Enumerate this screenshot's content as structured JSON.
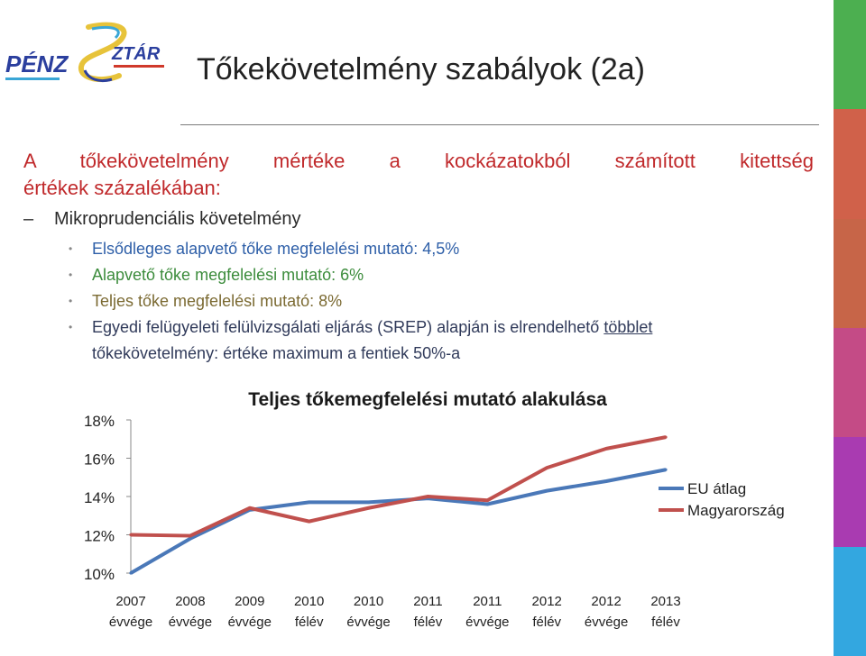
{
  "logo": {
    "text": "PÉNZSZTÁR",
    "colors": [
      "#2b3f9e",
      "#e7c33a",
      "#3aa6d6",
      "#d0392b"
    ]
  },
  "slide": {
    "title": "Tőkekövetelmény szabályok (2a)",
    "heading_line1": "A tőkekövetelmény mértéke a kockázatokból számított kitettség",
    "heading_line2": "értékek százalékában:",
    "sub_dash": "–",
    "sub_item": "Mikroprudenciális követelmény",
    "bullet_char": "•",
    "bullets": [
      "Elsődleges alapvető tőke megfelelési mutató: 4,5%",
      "Alapvető tőke megfelelési mutató: 6%",
      "Teljes tőke megfelelési mutató: 8%"
    ],
    "srep_line1_a": "Egyedi felügyeleti felülvizsgálati eljárás (SREP) alapján is elrendelhető ",
    "srep_line1_b": "többlet",
    "srep_line2": "tőkekövetelmény: értéke maximum a fentiek 50%-a"
  },
  "side_stripes": [
    "#4caf50",
    "#d0614a",
    "#c76548",
    "#c44b86",
    "#a93bb1",
    "#33a7e0"
  ],
  "chart_data": {
    "type": "line",
    "title": "Teljes tőkemegfelelési mutató  alakulása",
    "categories": [
      [
        "2007",
        "évvége"
      ],
      [
        "2008",
        "évvége"
      ],
      [
        "2009",
        "évvége"
      ],
      [
        "2010",
        "félév"
      ],
      [
        "2010",
        "évvége"
      ],
      [
        "2011",
        "félév"
      ],
      [
        "2011",
        "évvége"
      ],
      [
        "2012",
        "félév"
      ],
      [
        "2012",
        "évvége"
      ],
      [
        "2013",
        "félév"
      ]
    ],
    "y_ticks": [
      "18%",
      "16%",
      "14%",
      "12%",
      "10%"
    ],
    "ylim": [
      10,
      18
    ],
    "series": [
      {
        "name": "EU átlag",
        "color": "#4a78b8",
        "values": [
          10.0,
          11.8,
          13.3,
          13.7,
          13.7,
          13.9,
          13.6,
          14.3,
          14.8,
          15.4
        ]
      },
      {
        "name": "Magyarország",
        "color": "#c0504d",
        "values": [
          12.0,
          11.95,
          13.4,
          12.7,
          13.4,
          14.0,
          13.8,
          15.5,
          16.5,
          17.1
        ]
      }
    ],
    "legend": "right",
    "grid": false
  }
}
